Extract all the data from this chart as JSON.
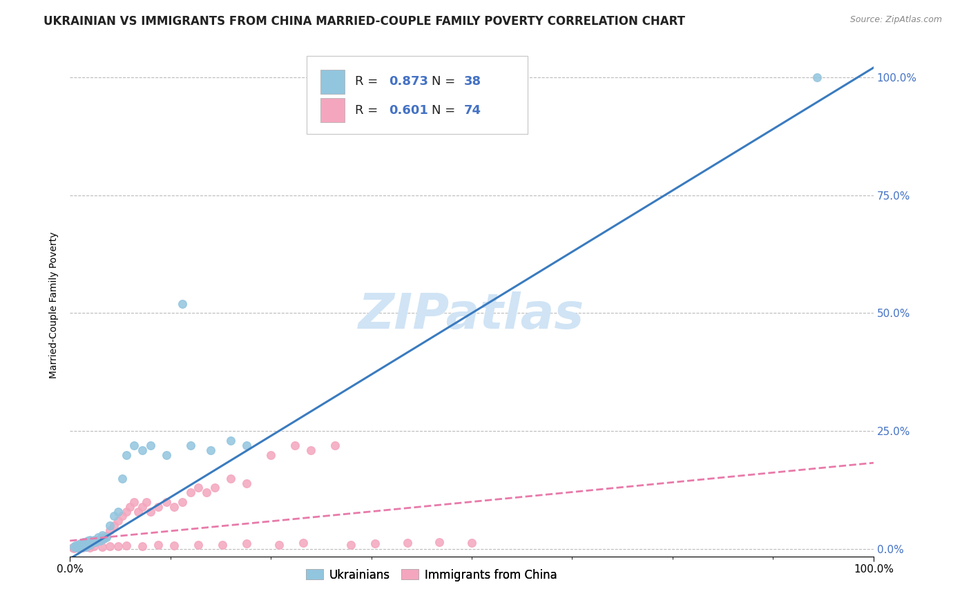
{
  "title": "UKRAINIAN VS IMMIGRANTS FROM CHINA MARRIED-COUPLE FAMILY POVERTY CORRELATION CHART",
  "source": "Source: ZipAtlas.com",
  "ylabel": "Married-Couple Family Poverty",
  "watermark": "ZIPatlas",
  "legend_labels": [
    "Ukrainians",
    "Immigrants from China"
  ],
  "ukrainian_color": "#92c5de",
  "chinese_color": "#f4a6be",
  "ukrainian_line_color": "#3a7bbf",
  "chinese_line_color": "#e87aaa",
  "right_axis_color": "#4472c4",
  "ytick_values": [
    0.0,
    0.25,
    0.5,
    0.75,
    1.0
  ],
  "ytick_labels": [
    "0.0%",
    "25.0%",
    "50.0%",
    "75.0%",
    "100.0%"
  ],
  "grid_color": "#bbbbbb",
  "background_color": "#ffffff",
  "title_fontsize": 12,
  "source_fontsize": 9,
  "ylabel_fontsize": 10,
  "tick_fontsize": 11,
  "legend_fontsize": 13,
  "watermark_fontsize": 52,
  "watermark_color": "#d0e4f5",
  "ukr_line_slope": 1.04,
  "ukr_line_intercept": -0.02,
  "chi_line_slope": 0.165,
  "chi_line_intercept": 0.018,
  "ukr_scatter_x": [
    0.005,
    0.007,
    0.008,
    0.01,
    0.01,
    0.012,
    0.013,
    0.015,
    0.015,
    0.017,
    0.018,
    0.02,
    0.02,
    0.022,
    0.025,
    0.025,
    0.03,
    0.032,
    0.035,
    0.038,
    0.04,
    0.042,
    0.045,
    0.05,
    0.055,
    0.06,
    0.065,
    0.07,
    0.08,
    0.09,
    0.1,
    0.12,
    0.15,
    0.175,
    0.2,
    0.22,
    0.14,
    0.93
  ],
  "ukr_scatter_y": [
    0.005,
    0.008,
    0.003,
    0.01,
    0.005,
    0.008,
    0.012,
    0.01,
    0.005,
    0.015,
    0.008,
    0.015,
    0.005,
    0.018,
    0.02,
    0.01,
    0.02,
    0.015,
    0.025,
    0.018,
    0.03,
    0.022,
    0.025,
    0.05,
    0.07,
    0.08,
    0.15,
    0.2,
    0.22,
    0.21,
    0.22,
    0.2,
    0.22,
    0.21,
    0.23,
    0.22,
    0.52,
    1.0
  ],
  "chi_scatter_x": [
    0.003,
    0.005,
    0.007,
    0.008,
    0.01,
    0.01,
    0.012,
    0.013,
    0.015,
    0.015,
    0.017,
    0.018,
    0.02,
    0.02,
    0.022,
    0.025,
    0.025,
    0.028,
    0.03,
    0.032,
    0.035,
    0.038,
    0.04,
    0.042,
    0.045,
    0.05,
    0.055,
    0.06,
    0.065,
    0.07,
    0.075,
    0.08,
    0.085,
    0.09,
    0.095,
    0.1,
    0.11,
    0.12,
    0.13,
    0.14,
    0.15,
    0.16,
    0.17,
    0.18,
    0.2,
    0.22,
    0.25,
    0.28,
    0.3,
    0.33,
    0.005,
    0.008,
    0.01,
    0.015,
    0.02,
    0.025,
    0.03,
    0.04,
    0.05,
    0.06,
    0.07,
    0.09,
    0.11,
    0.13,
    0.16,
    0.19,
    0.22,
    0.26,
    0.29,
    0.35,
    0.38,
    0.42,
    0.46,
    0.5
  ],
  "chi_scatter_y": [
    0.003,
    0.005,
    0.004,
    0.007,
    0.008,
    0.004,
    0.006,
    0.008,
    0.006,
    0.003,
    0.008,
    0.007,
    0.01,
    0.005,
    0.012,
    0.015,
    0.008,
    0.012,
    0.015,
    0.018,
    0.02,
    0.022,
    0.025,
    0.022,
    0.028,
    0.04,
    0.05,
    0.06,
    0.07,
    0.08,
    0.09,
    0.1,
    0.08,
    0.09,
    0.1,
    0.08,
    0.09,
    0.1,
    0.09,
    0.1,
    0.12,
    0.13,
    0.12,
    0.13,
    0.15,
    0.14,
    0.2,
    0.22,
    0.21,
    0.22,
    0.002,
    0.003,
    0.004,
    0.003,
    0.005,
    0.004,
    0.006,
    0.005,
    0.007,
    0.006,
    0.008,
    0.007,
    0.009,
    0.008,
    0.01,
    0.009,
    0.012,
    0.01,
    0.013,
    0.01,
    0.012,
    0.013,
    0.015,
    0.014
  ]
}
